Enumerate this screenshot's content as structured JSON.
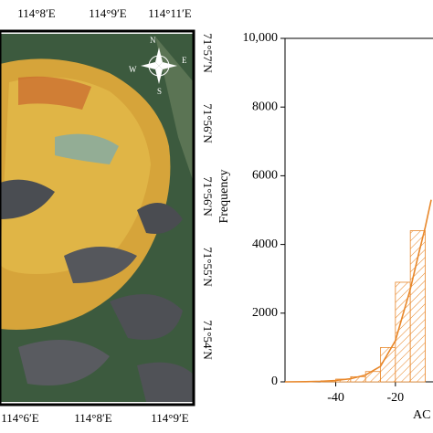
{
  "map": {
    "top_labels": [
      "114°8′E",
      "114°9′E",
      "114°11′E"
    ],
    "bottom_labels": [
      "114°6′E",
      "114°8′E",
      "114°9′E"
    ],
    "right_labels": [
      "71°57′N",
      "71°56′N",
      "71°56′N",
      "71°55′N",
      "71°54′N"
    ],
    "compass": [
      "N",
      "E",
      "S",
      "W"
    ]
  },
  "chart_data": {
    "type": "histogram",
    "y_label": "Frequency",
    "x_label": "AC",
    "bins": [
      -45,
      -40,
      -35,
      -30,
      -25,
      -20,
      -15,
      -10
    ],
    "counts": [
      30,
      80,
      150,
      300,
      1000,
      2900,
      4400
    ],
    "color": "#e8872a",
    "fit": {
      "x": [
        -57,
        -50,
        -45,
        -40,
        -35,
        -30,
        -25,
        -20,
        -15,
        -12,
        -10,
        -8
      ],
      "y": [
        0,
        5,
        15,
        40,
        90,
        200,
        450,
        1200,
        2700,
        3800,
        4500,
        5300
      ]
    },
    "xlim": [
      -57,
      -7.4
    ],
    "ylim": [
      0,
      10000
    ],
    "xticks": [
      -40,
      -20
    ],
    "yticks": [
      0,
      2000,
      4000,
      6000,
      8000,
      {
        "value": 10000,
        "label": "10,000"
      }
    ]
  }
}
